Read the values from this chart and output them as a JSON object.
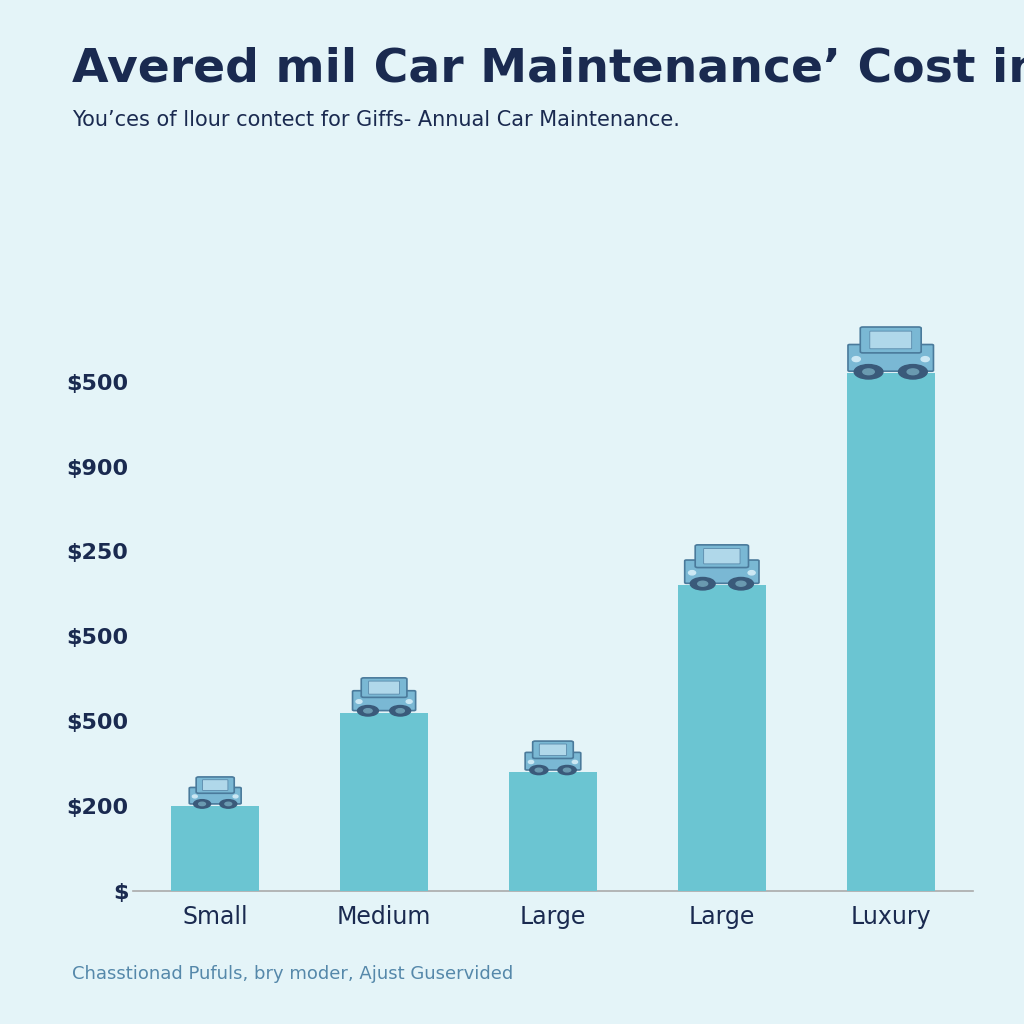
{
  "title": "Avered mil Car Maintenance’ Cost in UK",
  "subtitle": "You’ces of llour contect for Giffs- Annual Car Maintenance.",
  "footer": "Chasstionad Pufuls, bry moder, Ajust Guservided",
  "categories": [
    "Small",
    "Medium",
    "Large",
    "Large",
    "Luxury"
  ],
  "values": [
    1.0,
    2.1,
    1.4,
    3.6,
    6.1
  ],
  "ylim": [
    0,
    7.0
  ],
  "ytick_positions": [
    0,
    1,
    2,
    3,
    4,
    5,
    6
  ],
  "ytick_labels": [
    "$",
    "$200",
    "$500",
    "$500",
    "$250",
    "$900",
    "$500"
  ],
  "bar_color": "#6bc5d2",
  "background_color": "#e4f4f8",
  "text_color": "#1a2a50",
  "footer_color": "#5588aa",
  "title_fontsize": 34,
  "subtitle_fontsize": 15,
  "footer_fontsize": 13,
  "xtick_fontsize": 17,
  "ytick_fontsize": 16,
  "bar_width": 0.52
}
